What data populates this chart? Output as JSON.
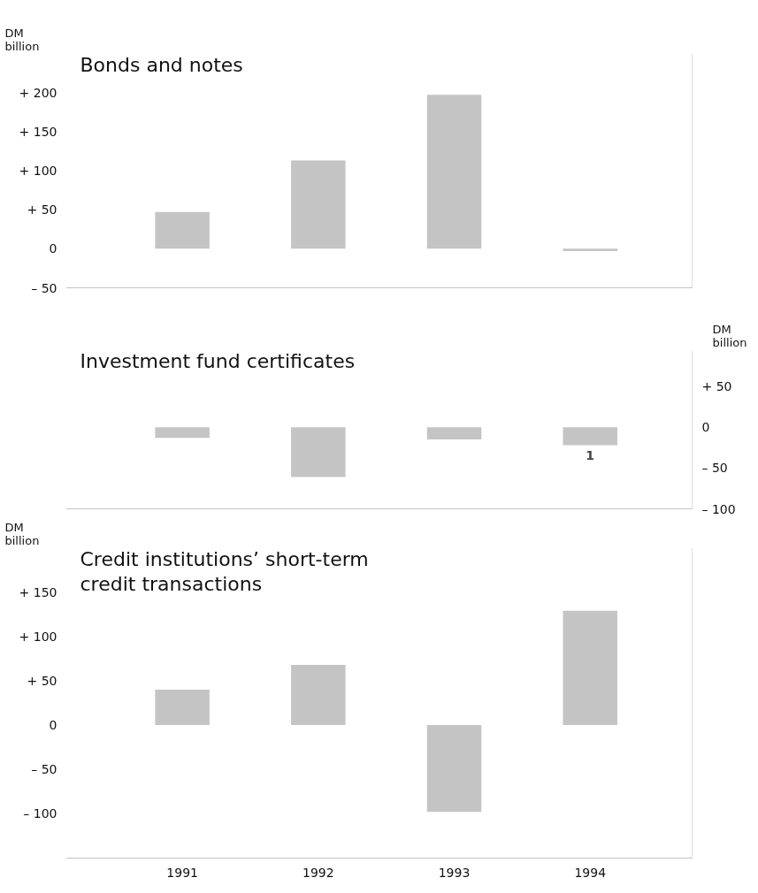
{
  "chart_data": [
    {
      "type": "bar",
      "title": "Bonds and notes",
      "ylabel": "DM billion",
      "categories": [
        "1991",
        "1992",
        "1993",
        "1994"
      ],
      "series": [
        {
          "color": "#c4c4c4",
          "values": [
            47,
            113,
            197,
            -3
          ]
        }
      ],
      "ylim": [
        -50,
        250
      ],
      "yticks": [
        {
          "value": 200,
          "label": "+ 200"
        },
        {
          "value": 150,
          "label": "+ 150"
        },
        {
          "value": 100,
          "label": "+ 100"
        },
        {
          "value": 50,
          "label": "+ 50"
        },
        {
          "value": 0,
          "label": "0"
        },
        {
          "value": -50,
          "label": "– 50"
        }
      ],
      "tick_labels": "y",
      "grid": false
    },
    {
      "type": "bar",
      "title": "Investment fund certificates",
      "y2label": "DM billion",
      "categories": [
        "1991",
        "1992",
        "1993",
        "1994"
      ],
      "series": [
        {
          "color": "#c4c4c4",
          "values": [
            -13,
            -61,
            -15,
            -22
          ],
          "axis": "y2"
        }
      ],
      "y2lim": [
        -100,
        95
      ],
      "y2ticks": [
        {
          "value": 50,
          "label": "+ 50"
        },
        {
          "value": 0,
          "label": "0"
        },
        {
          "value": -50,
          "label": "– 50"
        },
        {
          "value": -100,
          "label": "– 100"
        }
      ],
      "annotations": [
        "1"
      ],
      "tick_labels": "y",
      "grid": false
    },
    {
      "type": "bar",
      "title": "Credit institutions’ short-term credit transactions",
      "ylabel": "DM billion",
      "categories": [
        "1991",
        "1992",
        "1993",
        "1994"
      ],
      "series": [
        {
          "color": "#c4c4c4",
          "values": [
            40,
            68,
            -98,
            129
          ]
        }
      ],
      "ylim": [
        -150,
        200
      ],
      "yticks": [
        {
          "value": 150,
          "label": "+ 150"
        },
        {
          "value": 100,
          "label": "+ 100"
        },
        {
          "value": 50,
          "label": "+ 50"
        },
        {
          "value": 0,
          "label": "0"
        },
        {
          "value": -50,
          "label": "– 50"
        },
        {
          "value": -100,
          "label": "– 100"
        }
      ],
      "grid": false
    }
  ]
}
